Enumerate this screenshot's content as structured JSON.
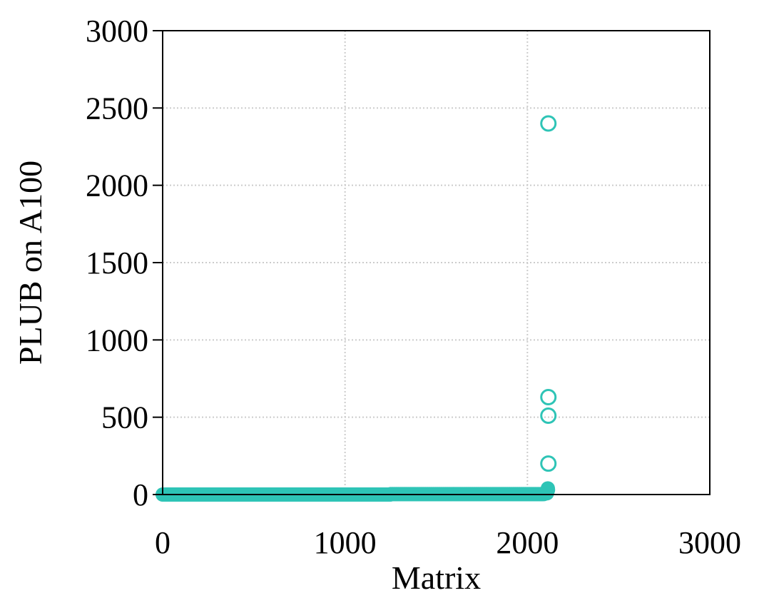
{
  "chart_data": {
    "type": "scatter",
    "title": "",
    "xlabel": "Matrix",
    "ylabel": "PLUB on A100",
    "xlim": [
      0,
      3000
    ],
    "ylim": [
      0,
      3000
    ],
    "xticks": [
      0,
      1000,
      2000,
      3000
    ],
    "yticks": [
      0,
      500,
      1000,
      1500,
      2000,
      2500,
      3000
    ],
    "grid": true,
    "color": "#2ec4b6",
    "series": [
      {
        "description_of_shape": "dense near-zero run",
        "range_x": [
          0,
          2110
        ],
        "values_segments": [
          {
            "x_start": 0,
            "x_end": 1250,
            "y": 0
          },
          {
            "x_start": 1250,
            "x_end": 2095,
            "y": 3
          },
          {
            "x_start": 2095,
            "x_end": 2110,
            "y": 8
          }
        ],
        "filled": true
      },
      {
        "points": [
          {
            "x": 2112,
            "y": 40
          },
          {
            "x": 2113,
            "y": 30
          },
          {
            "x": 2110,
            "y": 20
          },
          {
            "x": 2108,
            "y": 15
          }
        ],
        "filled": true
      },
      {
        "points": [
          {
            "x": 2115,
            "y": 200
          },
          {
            "x": 2115,
            "y": 510
          },
          {
            "x": 2115,
            "y": 630
          },
          {
            "x": 2115,
            "y": 2400
          }
        ],
        "filled": false
      }
    ]
  }
}
